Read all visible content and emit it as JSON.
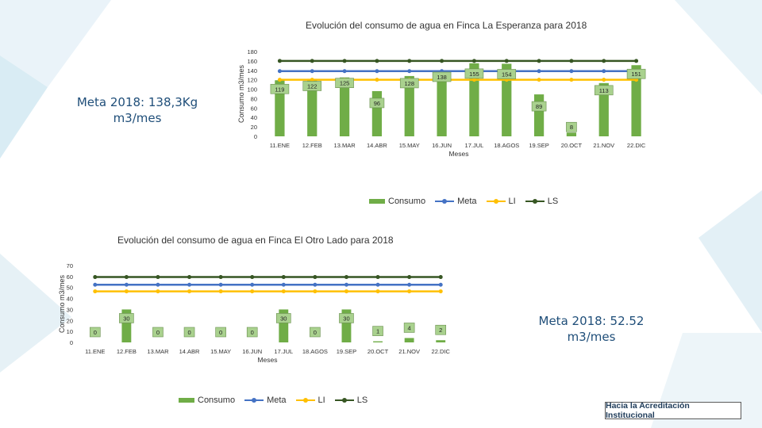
{
  "colors": {
    "consumo": "#70ad47",
    "meta": "#4472c4",
    "li": "#ffc000",
    "ls": "#375623",
    "label_bg": "#a9d18e"
  },
  "legend": {
    "consumo": "Consumo",
    "meta": "Meta",
    "li": "LI",
    "ls": "LS"
  },
  "footer": {
    "badge": "Hacia la Acreditación Institucional"
  },
  "chart1_meta_label": "Meta 2018: 138,3Kg m3/mes",
  "chart2_meta_label": "Meta 2018: 52.52 m3/mes",
  "chart_data": [
    {
      "type": "bar",
      "title": "Evolución del consumo de agua en Finca La Esperanza para 2018",
      "xlabel": "Meses",
      "ylabel": "Consumo m3/mes",
      "ylim": [
        0,
        180
      ],
      "yticks": [
        0,
        20,
        40,
        60,
        80,
        100,
        120,
        140,
        160,
        180
      ],
      "categories": [
        "11.ENE",
        "12.FEB",
        "13.MAR",
        "14.ABR",
        "15.MAY",
        "16.JUN",
        "17.JUL",
        "18.AGOS",
        "19.SEP",
        "20.OCT",
        "21.NOV",
        "22.DIC"
      ],
      "series": [
        {
          "name": "Consumo",
          "kind": "bar",
          "values": [
            119,
            122,
            125,
            96,
            128,
            138,
            155,
            154,
            89,
            8,
            113,
            151
          ]
        },
        {
          "name": "Meta",
          "kind": "line",
          "values": [
            138.3,
            138.3,
            138.3,
            138.3,
            138.3,
            138.3,
            138.3,
            138.3,
            138.3,
            138.3,
            138.3,
            138.3
          ]
        },
        {
          "name": "LI",
          "kind": "line",
          "values": [
            120,
            120,
            120,
            120,
            120,
            120,
            120,
            120,
            120,
            120,
            120,
            120
          ]
        },
        {
          "name": "LS",
          "kind": "line",
          "values": [
            160,
            160,
            160,
            160,
            160,
            160,
            160,
            160,
            160,
            160,
            160,
            160
          ]
        }
      ],
      "data_labels": [
        "119",
        "122",
        "125",
        "96",
        "128",
        "138",
        "155",
        "154",
        "89",
        "8",
        "113",
        "151"
      ],
      "grid": false,
      "legend_position": "bottom"
    },
    {
      "type": "bar",
      "title": "Evolución del consumo de agua en Finca El Otro Lado para 2018",
      "xlabel": "Meses",
      "ylabel": "Consumo m3/mes",
      "ylim": [
        0,
        70
      ],
      "yticks": [
        0,
        10,
        20,
        30,
        40,
        50,
        60,
        70
      ],
      "categories": [
        "11.ENE",
        "12.FEB",
        "13.MAR",
        "14.ABR",
        "15.MAY",
        "16.JUN",
        "17.JUL",
        "18.AGOS",
        "19.SEP",
        "20.OCT",
        "21.NOV",
        "22.DIC"
      ],
      "series": [
        {
          "name": "Consumo",
          "kind": "bar",
          "values": [
            0,
            30,
            0,
            0,
            0,
            0,
            30,
            0,
            30,
            1,
            4,
            2
          ]
        },
        {
          "name": "Meta",
          "kind": "line",
          "values": [
            52.52,
            52.52,
            52.52,
            52.52,
            52.52,
            52.52,
            52.52,
            52.52,
            52.52,
            52.52,
            52.52,
            52.52
          ]
        },
        {
          "name": "LI",
          "kind": "line",
          "values": [
            46.5,
            46.5,
            46.5,
            46.5,
            46.5,
            46.5,
            46.5,
            46.5,
            46.5,
            46.5,
            46.5,
            46.5
          ]
        },
        {
          "name": "LS",
          "kind": "line",
          "values": [
            59.5,
            59.5,
            59.5,
            59.5,
            59.5,
            59.5,
            59.5,
            59.5,
            59.5,
            59.5,
            59.5,
            59.5
          ]
        }
      ],
      "data_labels": [
        "0",
        "30",
        "0",
        "0",
        "0",
        "0",
        "30",
        "0",
        "30",
        "1",
        "4",
        "2"
      ],
      "grid": false,
      "legend_position": "bottom"
    }
  ]
}
